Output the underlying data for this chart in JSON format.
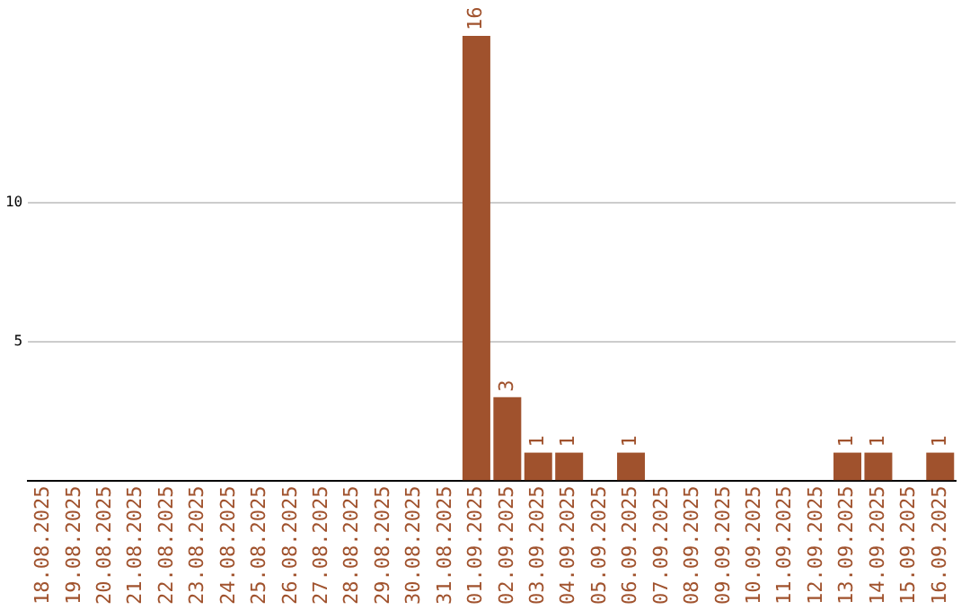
{
  "chart_data": {
    "type": "bar",
    "categories": [
      "18.08.2025",
      "19.08.2025",
      "20.08.2025",
      "21.08.2025",
      "22.08.2025",
      "23.08.2025",
      "24.08.2025",
      "25.08.2025",
      "26.08.2025",
      "27.08.2025",
      "28.08.2025",
      "29.08.2025",
      "30.08.2025",
      "31.08.2025",
      "01.09.2025",
      "02.09.2025",
      "03.09.2025",
      "04.09.2025",
      "05.09.2025",
      "06.09.2025",
      "07.09.2025",
      "08.09.2025",
      "09.09.2025",
      "10.09.2025",
      "11.09.2025",
      "12.09.2025",
      "13.09.2025",
      "14.09.2025",
      "15.09.2025",
      "16.09.2025"
    ],
    "values": [
      0,
      0,
      0,
      0,
      0,
      0,
      0,
      0,
      0,
      0,
      0,
      0,
      0,
      0,
      16,
      3,
      1,
      1,
      0,
      1,
      0,
      0,
      0,
      0,
      0,
      0,
      1,
      1,
      0,
      1
    ],
    "value_labels": [
      null,
      null,
      null,
      null,
      null,
      null,
      null,
      null,
      null,
      null,
      null,
      null,
      null,
      null,
      "16",
      "3",
      "1",
      "1",
      null,
      "1",
      null,
      null,
      null,
      null,
      null,
      null,
      "1",
      "1",
      null,
      "1"
    ],
    "color": "#a0522d",
    "ylim": [
      0,
      16
    ],
    "yticks": [
      5,
      10
    ],
    "grid": "y",
    "legend": false
  }
}
